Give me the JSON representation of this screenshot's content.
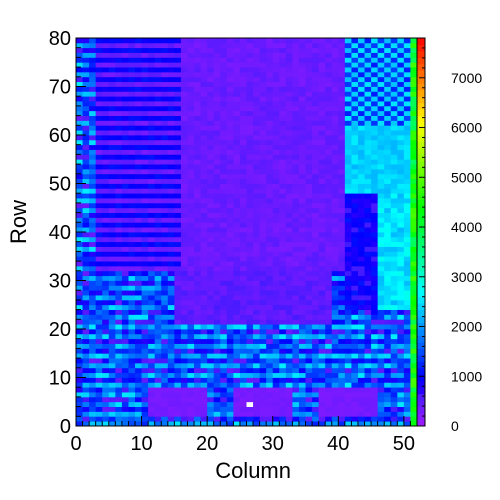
{
  "chart_data": {
    "type": "heatmap",
    "title": "",
    "xlabel": "Column",
    "ylabel": "Row",
    "xlim": [
      0,
      52
    ],
    "ylim": [
      0,
      80
    ],
    "x_ticks": [
      0,
      10,
      20,
      30,
      40,
      50
    ],
    "y_ticks": [
      0,
      10,
      20,
      30,
      40,
      50,
      60,
      70,
      80
    ],
    "zlim": [
      0,
      7800
    ],
    "z_ticks": [
      0,
      1000,
      2000,
      3000,
      4000,
      5000,
      6000,
      7000
    ],
    "colorbar": true,
    "palette": "rainbow",
    "n_columns": 52,
    "n_rows": 80,
    "regions": [
      {
        "name": "upper-left bulk",
        "x": [
          3,
          41
        ],
        "y": [
          32,
          80
        ],
        "approx_value": 400
      },
      {
        "name": "lower-middle bulk",
        "x": [
          15,
          39
        ],
        "y": [
          21,
          32
        ],
        "approx_value": 500
      },
      {
        "name": "right checkered top",
        "x": [
          41,
          51
        ],
        "y": [
          62,
          80
        ],
        "approx_value": 1800
      },
      {
        "name": "right light region",
        "x": [
          41,
          51
        ],
        "y": [
          48,
          62
        ],
        "approx_value": 2400
      },
      {
        "name": "right dark band",
        "x": [
          41,
          46
        ],
        "y": [
          24,
          48
        ],
        "approx_value": 900
      },
      {
        "name": "right cyan strip",
        "x": [
          46,
          51
        ],
        "y": [
          24,
          48
        ],
        "approx_value": 2500
      },
      {
        "name": "bottom violet block left",
        "x": [
          11,
          20
        ],
        "y": [
          2,
          8
        ],
        "approx_value": 300
      },
      {
        "name": "bottom violet block middle",
        "x": [
          24,
          33
        ],
        "y": [
          2,
          8
        ],
        "approx_value": 300
      },
      {
        "name": "bottom violet block right",
        "x": [
          37,
          46
        ],
        "y": [
          2,
          8
        ],
        "approx_value": 300
      },
      {
        "name": "right edge green column",
        "x": [
          51,
          52
        ],
        "y": [
          0,
          80
        ],
        "approx_value": 4300
      }
    ],
    "hotspots": [
      {
        "x": 26,
        "y": 4,
        "value": 0
      }
    ]
  }
}
